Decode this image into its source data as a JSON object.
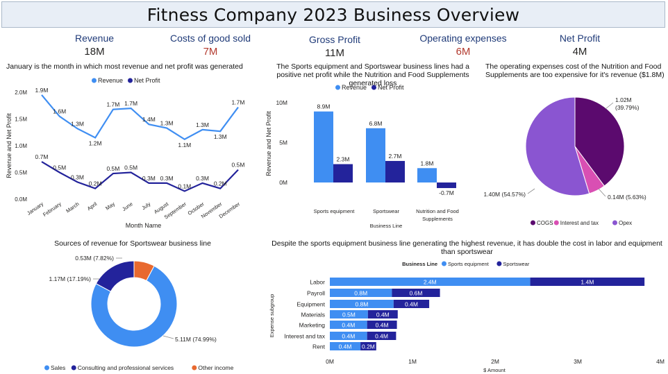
{
  "title": "Fitness Company 2023 Business Overview",
  "kpis": [
    {
      "label": "Revenue",
      "value": "18M",
      "color": "#252423"
    },
    {
      "label": "Costs of good sold",
      "value": "7M",
      "color": "#b23a2e"
    },
    {
      "label": "Gross Profit",
      "value": "11M",
      "color": "#252423"
    },
    {
      "label": "Operating expenses",
      "value": "6M",
      "color": "#b23a2e"
    },
    {
      "label": "Net Profit",
      "value": "4M",
      "color": "#252423"
    }
  ],
  "colors": {
    "light": "#3f8ef2",
    "dark": "#23239b",
    "orange": "#e8692f",
    "cogs": "#5b0a6e",
    "interest": "#d94fb3",
    "opex": "#8a55d1"
  },
  "chart_data": [
    {
      "id": "line",
      "type": "line",
      "title": "January is the month in which most revenue and net profit was generated",
      "xlabel": "Month Name",
      "ylabel": "Revenue and Net Profit",
      "legend_position": "top",
      "ylim": [
        0,
        2.0
      ],
      "yticks": [
        "0.0M",
        "0.5M",
        "1.0M",
        "1.5M",
        "2.0M"
      ],
      "categories": [
        "January",
        "February",
        "March",
        "April",
        "May",
        "June",
        "July",
        "August",
        "September",
        "October",
        "November",
        "December"
      ],
      "series": [
        {
          "name": "Revenue",
          "values": [
            1.95,
            1.55,
            1.32,
            1.15,
            1.68,
            1.7,
            1.4,
            1.33,
            1.12,
            1.3,
            1.27,
            1.72
          ],
          "labels": [
            "1.9M",
            "1.6M",
            "1.3M",
            "1.2M",
            "1.7M",
            "1.7M",
            "1.4M",
            "1.3M",
            "1.1M",
            "1.3M",
            "1.3M",
            "1.7M"
          ]
        },
        {
          "name": "Net Profit",
          "values": [
            0.7,
            0.5,
            0.32,
            0.2,
            0.48,
            0.5,
            0.3,
            0.3,
            0.15,
            0.3,
            0.2,
            0.55
          ],
          "labels": [
            "0.7M",
            "0.5M",
            "0.3M",
            "0.2M",
            "0.5M",
            "0.5M",
            "0.3M",
            "0.3M",
            "0.1M",
            "0.3M",
            "0.2M",
            "0.5M"
          ]
        }
      ]
    },
    {
      "id": "bars",
      "type": "bar",
      "title": "The Sports equipment and Sportswear business lines had a positive net profit while the Nutrition and Food Supplements generated loss",
      "xlabel": "Business Line",
      "ylabel": "Revenue and Net Profit",
      "legend_position": "top",
      "ylim": [
        -0.8,
        10
      ],
      "yticks": [
        "0M",
        "5M",
        "10M"
      ],
      "categories": [
        "Sports equipment",
        "Sportswear",
        "Nutrition and Food Supplements"
      ],
      "series": [
        {
          "name": "Revenue",
          "values": [
            8.9,
            6.8,
            1.8
          ],
          "labels": [
            "8.9M",
            "6.8M",
            "1.8M"
          ]
        },
        {
          "name": "Net Profit",
          "values": [
            2.3,
            2.7,
            -0.7
          ],
          "labels": [
            "2.3M",
            "2.7M",
            "-0.7M"
          ]
        }
      ]
    },
    {
      "id": "pie",
      "type": "pie",
      "title": "The operating expenses cost of the Nutrition and Food Supplements are too expensive for it's revenue ($1.8M)",
      "legend_position": "bottom",
      "slices": [
        {
          "name": "COGS",
          "value": 1.02,
          "percent": 39.79,
          "label": "1.02M",
          "sublabel": "(39.79%)"
        },
        {
          "name": "Interest and tax",
          "value": 0.14,
          "percent": 5.63,
          "label": "0.14M (5.63%)"
        },
        {
          "name": "Opex",
          "value": 1.4,
          "percent": 54.57,
          "label": "1.40M (54.57%)"
        }
      ]
    },
    {
      "id": "donut",
      "type": "pie",
      "title": "Sources of revenue for Sportswear business line",
      "legend_position": "bottom",
      "slices": [
        {
          "name": "Sales",
          "value": 5.11,
          "percent": 74.99,
          "label": "5.11M (74.99%)"
        },
        {
          "name": "Consulting and professional services",
          "value": 1.17,
          "percent": 17.19,
          "label": "1.17M (17.19%)"
        },
        {
          "name": "Other income",
          "value": 0.53,
          "percent": 7.82,
          "label": "0.53M (7.82%)"
        }
      ]
    },
    {
      "id": "hbar",
      "type": "bar",
      "orientation": "horizontal",
      "stacked": true,
      "title": "Despite the sports equipment business line generating the highest revenue, it has double the cost in labor and equipment than sportswear",
      "legend_title": "Business Line",
      "legend_position": "top",
      "xlabel": "$ Amount",
      "ylabel": "Expense subgroup",
      "xlim": [
        0,
        4
      ],
      "xticks": [
        "0M",
        "1M",
        "2M",
        "3M",
        "4M"
      ],
      "categories": [
        "Labor",
        "Payroll",
        "Equipment",
        "Materials",
        "Marketing",
        "Interest and tax",
        "Rent"
      ],
      "series": [
        {
          "name": "Sports equipment",
          "values": [
            2.42,
            0.75,
            0.77,
            0.46,
            0.45,
            0.45,
            0.37
          ],
          "labels": [
            "2.4M",
            "0.8M",
            "0.8M",
            "0.5M",
            "0.4M",
            "0.4M",
            "0.4M"
          ]
        },
        {
          "name": "Sportswear",
          "values": [
            1.38,
            0.58,
            0.43,
            0.36,
            0.36,
            0.35,
            0.19
          ],
          "labels": [
            "1.4M",
            "0.6M",
            "0.4M",
            "0.4M",
            "0.4M",
            "0.4M",
            "0.2M"
          ]
        }
      ]
    }
  ]
}
